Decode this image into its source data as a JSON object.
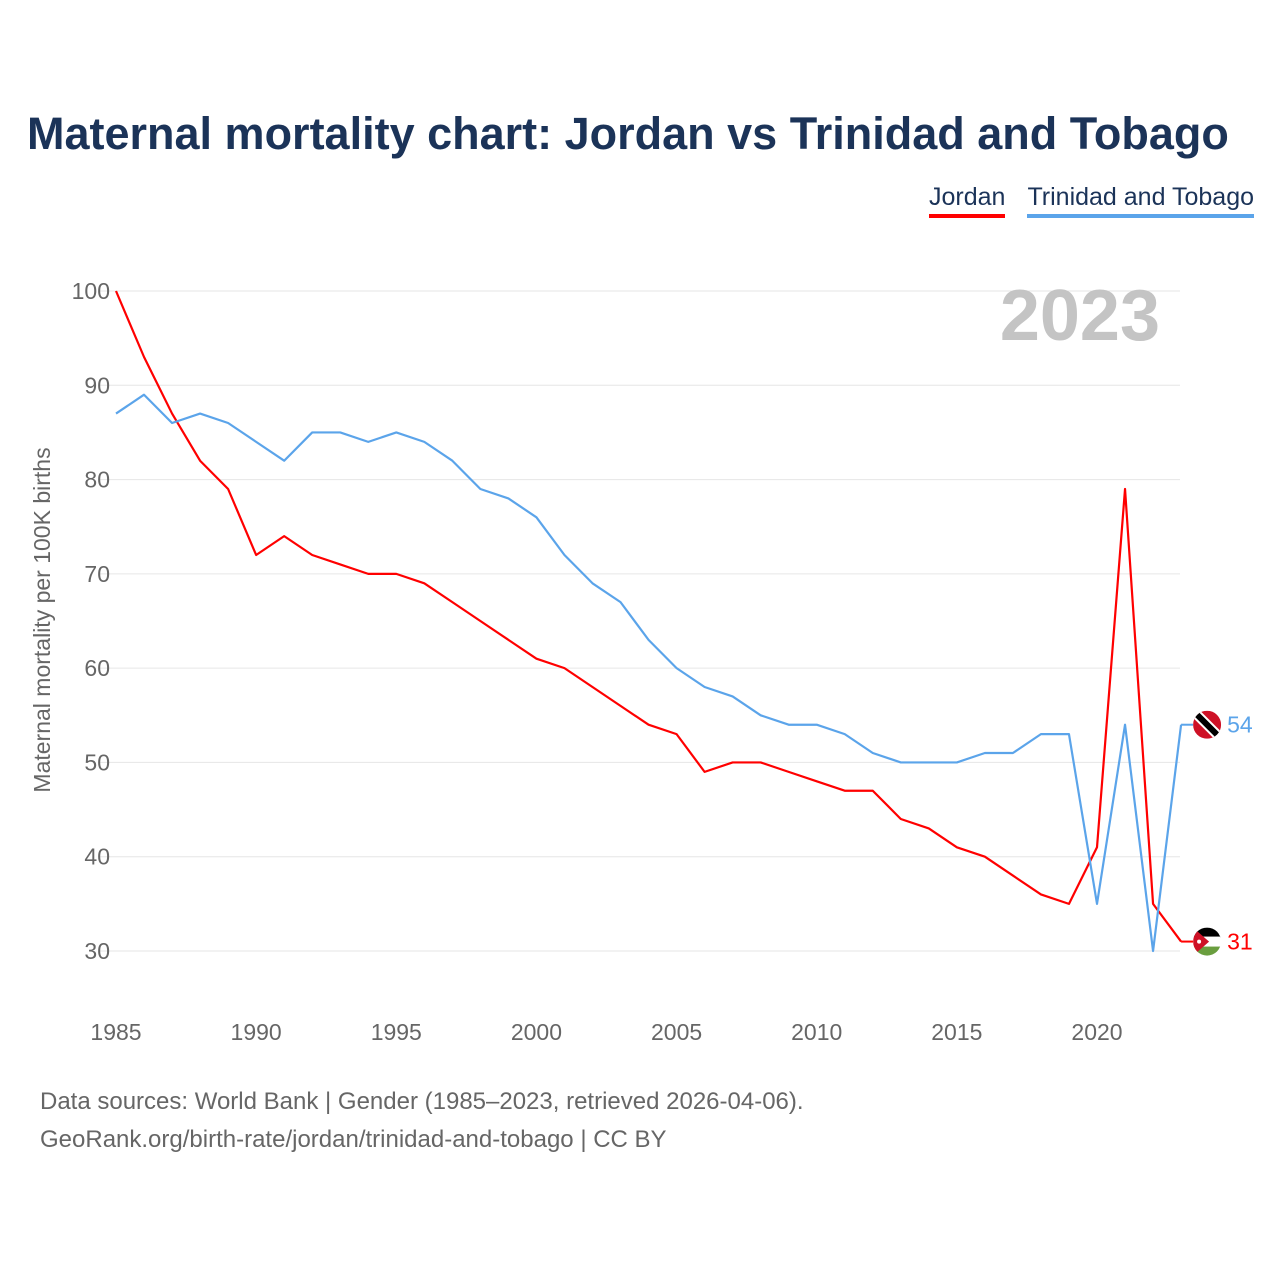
{
  "title": "Maternal mortality chart: Jordan vs Trinidad and Tobago",
  "year_watermark": "2023",
  "footer": {
    "line1": "Data sources: World Bank | Gender (1985–2023, retrieved 2026-04-06).",
    "line2": "GeoRank.org/birth-rate/jordan/trinidad-and-tobago | CC BY"
  },
  "chart_data": {
    "type": "line",
    "title": "Maternal mortality chart: Jordan vs Trinidad and Tobago",
    "xlabel": "",
    "ylabel": "Maternal mortality per 100K births",
    "xlim": [
      1985,
      2023
    ],
    "ylim": [
      30,
      100
    ],
    "xticks": [
      "1985",
      "1990",
      "1995",
      "2000",
      "2005",
      "2010",
      "2015",
      "2020"
    ],
    "yticks": [
      "30",
      "40",
      "50",
      "60",
      "70",
      "80",
      "90",
      "100"
    ],
    "grid": true,
    "legend_placement": "top-right",
    "x": [
      1985,
      1986,
      1987,
      1988,
      1989,
      1990,
      1991,
      1992,
      1993,
      1994,
      1995,
      1996,
      1997,
      1998,
      1999,
      2000,
      2001,
      2002,
      2003,
      2004,
      2005,
      2006,
      2007,
      2008,
      2009,
      2010,
      2011,
      2012,
      2013,
      2014,
      2015,
      2016,
      2017,
      2018,
      2019,
      2020,
      2021,
      2022,
      2023
    ],
    "series": [
      {
        "name": "Jordan",
        "color": "#ff0000",
        "end_label": "31",
        "values": [
          100,
          93,
          87,
          82,
          79,
          72,
          74,
          72,
          71,
          70,
          70,
          69,
          67,
          65,
          63,
          61,
          60,
          58,
          56,
          54,
          53,
          49,
          50,
          50,
          49,
          48,
          47,
          47,
          44,
          43,
          41,
          40,
          38,
          36,
          35,
          41,
          79,
          35,
          31
        ]
      },
      {
        "name": "Trinidad and Tobago",
        "color": "#5ba4ea",
        "end_label": "54",
        "values": [
          87,
          89,
          86,
          87,
          86,
          84,
          82,
          85,
          85,
          84,
          85,
          84,
          82,
          79,
          78,
          76,
          72,
          69,
          67,
          63,
          60,
          58,
          57,
          55,
          54,
          54,
          53,
          51,
          50,
          50,
          50,
          51,
          51,
          53,
          53,
          35,
          54,
          30,
          54
        ]
      }
    ]
  }
}
